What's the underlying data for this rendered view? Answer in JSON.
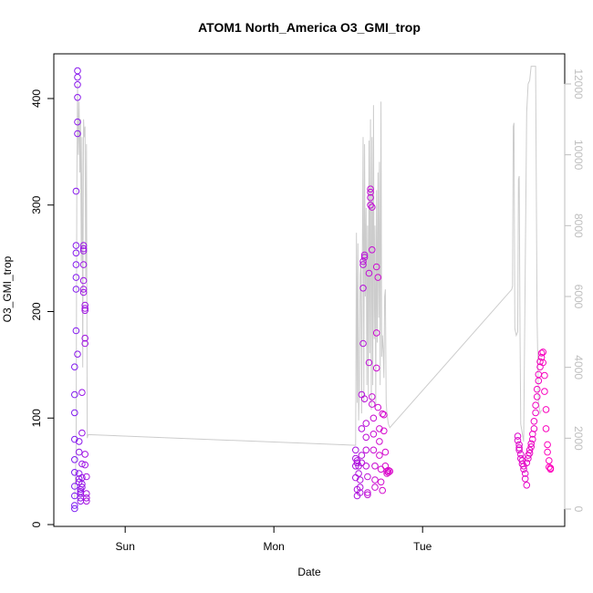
{
  "chart_data": {
    "type": "scatter",
    "title": "ATOM1 North_America O3_GMI_trop",
    "xlabel": "Date",
    "ylabel": "O3_GMI_trop",
    "x_ticks": [
      "Sun",
      "Mon",
      "Tue"
    ],
    "x_tick_days": [
      1,
      2,
      3
    ],
    "xlim": [
      0.6,
      3.95
    ],
    "ylim": [
      0,
      440
    ],
    "y_ticks": [
      0,
      100,
      200,
      300,
      400
    ],
    "y2_ticks": [
      0,
      2000,
      4000,
      6000,
      8000,
      10000,
      12000
    ],
    "y2lim": [
      0,
      13200
    ],
    "grid": false,
    "colors": {
      "axis": "#000000",
      "secondary_axis": "#bebebe",
      "line": "#cccccc",
      "series_start": "#7b1cf2",
      "series_end": "#ff00bb"
    },
    "series": [
      {
        "values": [
          [
            0.66,
            15
          ],
          [
            0.66,
            18
          ],
          [
            0.66,
            27
          ],
          [
            0.66,
            36
          ],
          [
            0.66,
            49
          ],
          [
            0.66,
            61
          ],
          [
            0.66,
            80
          ],
          [
            0.66,
            105
          ],
          [
            0.66,
            122
          ],
          [
            0.66,
            148
          ],
          [
            0.67,
            182
          ],
          [
            0.67,
            221
          ],
          [
            0.67,
            232
          ],
          [
            0.67,
            244
          ],
          [
            0.67,
            255
          ],
          [
            0.67,
            262
          ],
          [
            0.67,
            313
          ],
          [
            0.68,
            426
          ],
          [
            0.68,
            420
          ],
          [
            0.68,
            413
          ],
          [
            0.68,
            401
          ],
          [
            0.68,
            378
          ],
          [
            0.68,
            367
          ],
          [
            0.68,
            160
          ],
          [
            0.69,
            78
          ],
          [
            0.69,
            68
          ],
          [
            0.69,
            48
          ],
          [
            0.69,
            43
          ],
          [
            0.69,
            40
          ],
          [
            0.7,
            33
          ],
          [
            0.7,
            29
          ],
          [
            0.7,
            25
          ],
          [
            0.7,
            22
          ],
          [
            0.7,
            31
          ],
          [
            0.71,
            35
          ],
          [
            0.71,
            38
          ],
          [
            0.71,
            44
          ],
          [
            0.71,
            57
          ],
          [
            0.71,
            86
          ],
          [
            0.71,
            124
          ],
          [
            0.72,
            257
          ],
          [
            0.72,
            259
          ],
          [
            0.72,
            262
          ],
          [
            0.72,
            244
          ],
          [
            0.72,
            229
          ],
          [
            0.72,
            221
          ],
          [
            0.72,
            218
          ],
          [
            0.73,
            206
          ],
          [
            0.73,
            201
          ],
          [
            0.73,
            203
          ],
          [
            0.73,
            175
          ],
          [
            0.73,
            170
          ],
          [
            0.73,
            66
          ],
          [
            0.73,
            56
          ],
          [
            0.74,
            45
          ],
          [
            0.74,
            29
          ],
          [
            0.74,
            25
          ],
          [
            0.74,
            22
          ]
        ]
      },
      {
        "values": [
          [
            2.55,
            70
          ],
          [
            2.55,
            62
          ],
          [
            2.55,
            55
          ],
          [
            2.55,
            44
          ],
          [
            2.56,
            33
          ],
          [
            2.56,
            27
          ],
          [
            2.56,
            58
          ],
          [
            2.56,
            60
          ],
          [
            2.57,
            55
          ],
          [
            2.57,
            48
          ],
          [
            2.58,
            30
          ],
          [
            2.58,
            35
          ],
          [
            2.58,
            42
          ],
          [
            2.59,
            58
          ],
          [
            2.59,
            65
          ],
          [
            2.59,
            90
          ],
          [
            2.59,
            122
          ],
          [
            2.6,
            170
          ],
          [
            2.6,
            222
          ],
          [
            2.6,
            244
          ],
          [
            2.6,
            247
          ],
          [
            2.61,
            251
          ],
          [
            2.61,
            253
          ],
          [
            2.61,
            118
          ],
          [
            2.62,
            95
          ],
          [
            2.62,
            82
          ],
          [
            2.62,
            70
          ],
          [
            2.62,
            55
          ],
          [
            2.63,
            45
          ],
          [
            2.63,
            30
          ],
          [
            2.63,
            28
          ],
          [
            2.64,
            152
          ],
          [
            2.64,
            236
          ],
          [
            2.65,
            300
          ],
          [
            2.65,
            307
          ],
          [
            2.65,
            312
          ],
          [
            2.65,
            315
          ],
          [
            2.66,
            298
          ],
          [
            2.66,
            258
          ],
          [
            2.66,
            120
          ],
          [
            2.66,
            113
          ],
          [
            2.67,
            100
          ],
          [
            2.67,
            85
          ],
          [
            2.67,
            70
          ],
          [
            2.68,
            55
          ],
          [
            2.68,
            42
          ],
          [
            2.68,
            35
          ],
          [
            2.69,
            147
          ],
          [
            2.69,
            180
          ],
          [
            2.69,
            242
          ],
          [
            2.7,
            232
          ],
          [
            2.7,
            110
          ],
          [
            2.71,
            90
          ],
          [
            2.71,
            78
          ],
          [
            2.71,
            65
          ],
          [
            2.72,
            52
          ],
          [
            2.72,
            40
          ],
          [
            2.73,
            32
          ],
          [
            2.73,
            104
          ],
          [
            2.74,
            103
          ],
          [
            2.74,
            88
          ],
          [
            2.75,
            68
          ],
          [
            2.75,
            55
          ],
          [
            2.76,
            50
          ],
          [
            2.76,
            48
          ],
          [
            2.77,
            51
          ],
          [
            2.77,
            49
          ],
          [
            2.78,
            50
          ]
        ]
      },
      {
        "values": [
          [
            3.64,
            83
          ],
          [
            3.64,
            79
          ],
          [
            3.65,
            75
          ],
          [
            3.65,
            72
          ],
          [
            3.65,
            70
          ],
          [
            3.66,
            66
          ],
          [
            3.66,
            62
          ],
          [
            3.67,
            60
          ],
          [
            3.67,
            57
          ],
          [
            3.68,
            55
          ],
          [
            3.68,
            52
          ],
          [
            3.69,
            48
          ],
          [
            3.69,
            43
          ],
          [
            3.7,
            37
          ],
          [
            3.7,
            58
          ],
          [
            3.71,
            62
          ],
          [
            3.71,
            65
          ],
          [
            3.72,
            67
          ],
          [
            3.72,
            70
          ],
          [
            3.73,
            73
          ],
          [
            3.73,
            76
          ],
          [
            3.74,
            80
          ],
          [
            3.74,
            85
          ],
          [
            3.75,
            90
          ],
          [
            3.75,
            97
          ],
          [
            3.76,
            105
          ],
          [
            3.76,
            112
          ],
          [
            3.77,
            120
          ],
          [
            3.77,
            127
          ],
          [
            3.78,
            135
          ],
          [
            3.78,
            141
          ],
          [
            3.79,
            148
          ],
          [
            3.79,
            153
          ],
          [
            3.8,
            157
          ],
          [
            3.8,
            161
          ],
          [
            3.81,
            162
          ],
          [
            3.81,
            152
          ],
          [
            3.82,
            140
          ],
          [
            3.82,
            125
          ],
          [
            3.83,
            108
          ],
          [
            3.83,
            90
          ],
          [
            3.84,
            75
          ],
          [
            3.84,
            68
          ],
          [
            3.85,
            60
          ],
          [
            3.85,
            54
          ],
          [
            3.86,
            52
          ],
          [
            3.86,
            53
          ]
        ]
      }
    ],
    "line_series": {
      "values": [
        [
          0.66,
          300
        ],
        [
          0.67,
          1500
        ],
        [
          0.675,
          9000
        ],
        [
          0.68,
          12000
        ],
        [
          0.685,
          10000
        ],
        [
          0.69,
          11500
        ],
        [
          0.695,
          9500
        ],
        [
          0.7,
          11000
        ],
        [
          0.705,
          7000
        ],
        [
          0.71,
          10500
        ],
        [
          0.715,
          4000
        ],
        [
          0.72,
          11000
        ],
        [
          0.725,
          10500
        ],
        [
          0.73,
          10800
        ],
        [
          0.735,
          6500
        ],
        [
          0.74,
          10300
        ],
        [
          0.745,
          2000
        ],
        [
          0.75,
          2100
        ],
        [
          2.55,
          1800
        ],
        [
          2.555,
          7800
        ],
        [
          2.56,
          3000
        ],
        [
          2.565,
          7500
        ],
        [
          2.57,
          2500
        ],
        [
          2.575,
          3500
        ],
        [
          2.58,
          6600
        ],
        [
          2.585,
          7000
        ],
        [
          2.59,
          2700
        ],
        [
          2.595,
          7200
        ],
        [
          2.6,
          10500
        ],
        [
          2.605,
          3000
        ],
        [
          2.61,
          10300
        ],
        [
          2.615,
          6000
        ],
        [
          2.62,
          8500
        ],
        [
          2.625,
          3500
        ],
        [
          2.63,
          8000
        ],
        [
          2.635,
          3200
        ],
        [
          2.64,
          10400
        ],
        [
          2.645,
          4400
        ],
        [
          2.65,
          11000
        ],
        [
          2.655,
          2800
        ],
        [
          2.66,
          10500
        ],
        [
          2.665,
          3500
        ],
        [
          2.67,
          11400
        ],
        [
          2.675,
          4800
        ],
        [
          2.68,
          8000
        ],
        [
          2.685,
          2900
        ],
        [
          2.69,
          9000
        ],
        [
          2.695,
          4700
        ],
        [
          2.7,
          9500
        ],
        [
          2.705,
          5400
        ],
        [
          2.71,
          9800
        ],
        [
          2.715,
          3500
        ],
        [
          2.72,
          11500
        ],
        [
          2.725,
          4300
        ],
        [
          2.73,
          4900
        ],
        [
          2.735,
          4500
        ],
        [
          2.74,
          3700
        ],
        [
          2.745,
          6000
        ],
        [
          2.75,
          6200
        ],
        [
          2.755,
          3000
        ],
        [
          2.76,
          2700
        ],
        [
          2.77,
          2400
        ],
        [
          2.78,
          2300
        ],
        [
          3.6,
          6200
        ],
        [
          3.605,
          6300
        ],
        [
          3.61,
          10800
        ],
        [
          3.615,
          10900
        ],
        [
          3.62,
          5100
        ],
        [
          3.63,
          4900
        ],
        [
          3.64,
          5000
        ],
        [
          3.645,
          9300
        ],
        [
          3.65,
          9400
        ],
        [
          3.655,
          5000
        ],
        [
          3.66,
          2400
        ],
        [
          3.68,
          1900
        ],
        [
          3.7,
          11200
        ],
        [
          3.71,
          12000
        ],
        [
          3.72,
          12100
        ],
        [
          3.73,
          12500
        ],
        [
          3.74,
          12500
        ],
        [
          3.75,
          12500
        ],
        [
          3.76,
          12500
        ],
        [
          3.77,
          5400
        ],
        [
          3.78,
          3000
        ],
        [
          3.79,
          2700
        ],
        [
          3.8,
          2800
        ]
      ]
    }
  }
}
